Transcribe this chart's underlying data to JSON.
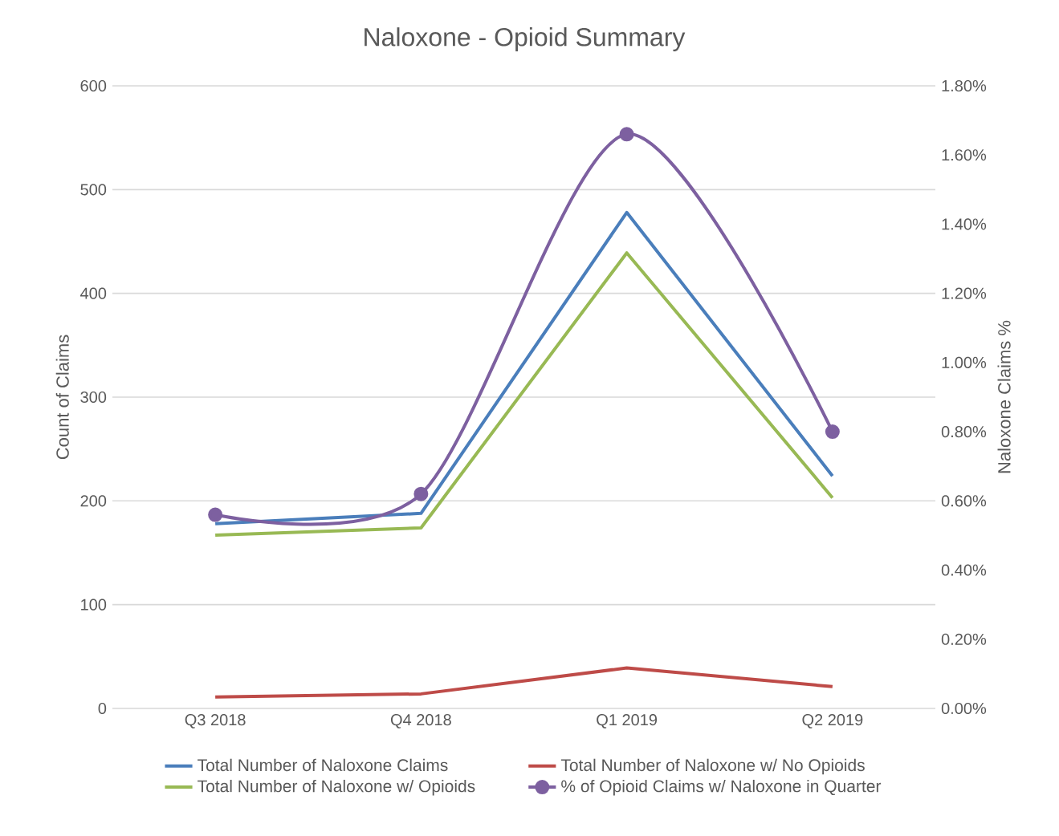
{
  "chart_data": {
    "type": "line",
    "title": "Naloxone - Opioid Summary",
    "ylabel": "Count of Claims",
    "y2label": "Naloxone Claims %",
    "categories": [
      "Q3 2018",
      "Q4 2018",
      "Q1 2019",
      "Q2 2019"
    ],
    "series": [
      {
        "name": "Total Number of Naloxone Claims",
        "color": "#4a7ebb",
        "values": [
          178,
          188,
          478,
          224
        ]
      },
      {
        "name": "Total Number of Naloxone w/ No Opioids",
        "color": "#be4b48",
        "values": [
          11,
          14,
          39,
          21
        ]
      },
      {
        "name": "Total Number of Naloxone w/ Opioids",
        "color": "#98b954",
        "values": [
          167,
          174,
          439,
          203
        ]
      },
      {
        "name": "% of Opioid Claims w/ Naloxone in Quarter",
        "color": "#7d60a0",
        "values": [
          0.56,
          0.62,
          1.66,
          0.8
        ],
        "axis": "y2",
        "marker": "circle"
      }
    ],
    "ylim": [
      0,
      600
    ],
    "yticks": [
      0,
      100,
      200,
      300,
      400,
      500,
      600
    ],
    "y2lim": [
      0,
      1.8
    ],
    "y2ticks": [
      {
        "value": 0,
        "label": "0.00%"
      },
      {
        "value": 0.2,
        "label": "0.20%"
      },
      {
        "value": 0.4,
        "label": "0.40%"
      },
      {
        "value": 0.6,
        "label": "0.60%"
      },
      {
        "value": 0.8,
        "label": "0.80%"
      },
      {
        "value": 1.0,
        "label": "1.00%"
      },
      {
        "value": 1.2,
        "label": "1.20%"
      },
      {
        "value": 1.4,
        "label": "1.40%"
      },
      {
        "value": 1.6,
        "label": "1.60%"
      },
      {
        "value": 1.8,
        "label": "1.80%"
      }
    ],
    "grid": "y",
    "legend": "bottom"
  }
}
